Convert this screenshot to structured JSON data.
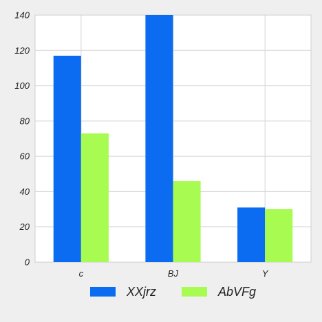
{
  "chart_data": {
    "type": "bar",
    "title": "",
    "xlabel": "",
    "ylabel": "",
    "categories": [
      "c",
      "BJ",
      "Y"
    ],
    "series": [
      {
        "name": "XXjrz",
        "values": [
          117,
          140,
          31
        ],
        "color": "#0b6cf2"
      },
      {
        "name": "AbVFg",
        "values": [
          73,
          46,
          30
        ],
        "color": "#a8fb50"
      }
    ],
    "ylim": [
      0,
      140
    ],
    "yticks": [
      "0",
      "20",
      "40",
      "60",
      "80",
      "100",
      "120",
      "140"
    ],
    "grid": true,
    "legend_position": "bottom-center"
  }
}
